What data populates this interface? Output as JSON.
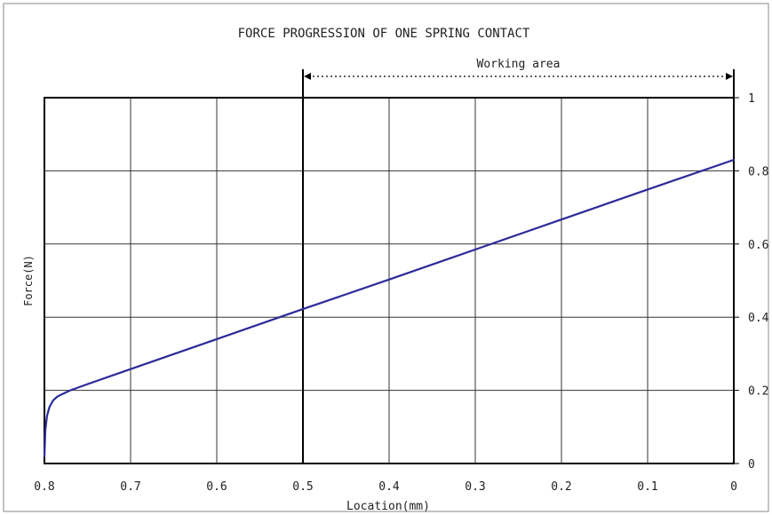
{
  "chart_data": {
    "type": "line",
    "title": "FORCE PROGRESSION OF ONE SPRING CONTACT",
    "xlabel": "Location(mm)",
    "ylabel": "Force(N)",
    "xlim": [
      0.8,
      0
    ],
    "ylim": [
      0,
      1
    ],
    "x_ticks": [
      "0.8",
      "0.7",
      "0.6",
      "0.5",
      "0.4",
      "0.3",
      "0.2",
      "0.1",
      "0"
    ],
    "y_ticks": [
      "0",
      "0.2",
      "0.4",
      "0.6",
      "0.8",
      "1"
    ],
    "y_axis_side": "right",
    "grid": true,
    "annotation": {
      "text": "Working area",
      "from": 0.5,
      "to": 0
    },
    "series": [
      {
        "color": "#2b2b9a",
        "x": [
          0.8,
          0.799,
          0.797,
          0.794,
          0.79,
          0.785,
          0.779,
          0.77,
          0.75,
          0.7,
          0.6,
          0.5,
          0.4,
          0.3,
          0.2,
          0.1,
          0.0
        ],
        "y": [
          0.02,
          0.09,
          0.13,
          0.155,
          0.172,
          0.183,
          0.19,
          0.2,
          0.217,
          0.258,
          0.34,
          0.422,
          0.503,
          0.585,
          0.667,
          0.749,
          0.83
        ]
      }
    ]
  }
}
